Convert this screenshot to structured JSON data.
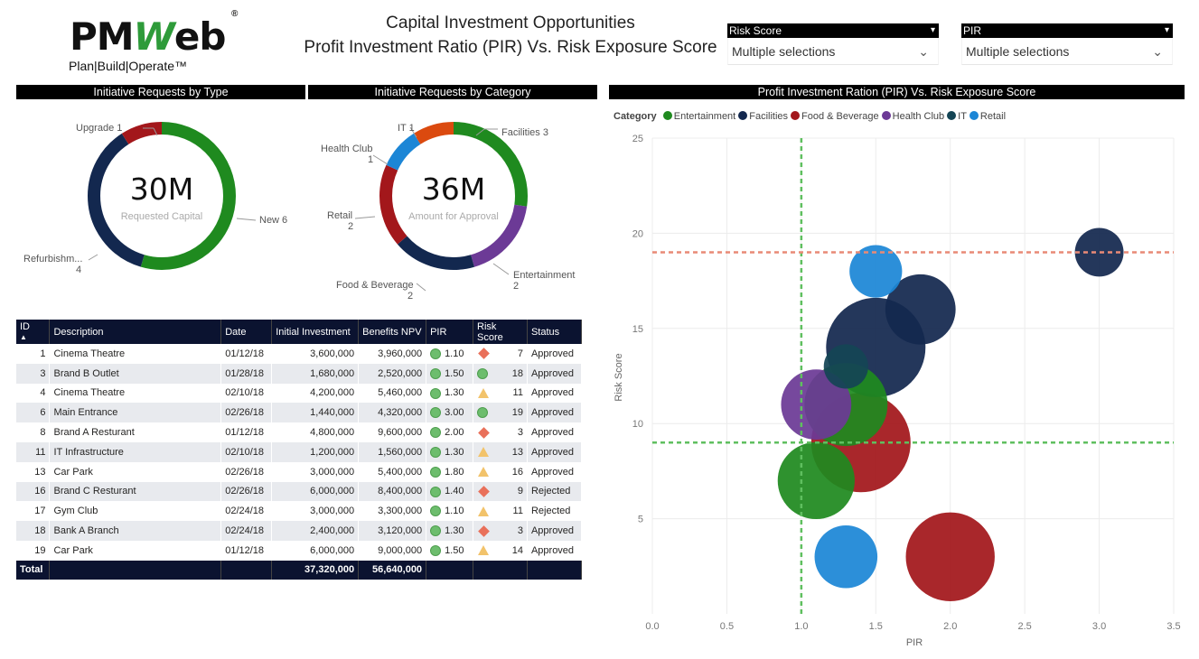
{
  "logo": {
    "brand_left": "PM",
    "brand_w": "W",
    "brand_right": "eb",
    "registered": "®",
    "tagline": "Plan|Build|Operate™"
  },
  "header": {
    "title_line1": "Capital Investment Opportunities",
    "title_line2": "Profit Investment Ratio (PIR) Vs. Risk Exposure Score"
  },
  "slicers": [
    {
      "label": "Risk Score",
      "value": "Multiple selections"
    },
    {
      "label": "PIR",
      "value": "Multiple selections"
    }
  ],
  "panels": {
    "type_title": "Initiative Requests by Type",
    "category_title": "Initiative Requests by Category",
    "scatter_title": "Profit Investment Ration (PIR) Vs. Risk Exposure Score"
  },
  "colors": {
    "green": "#1f8a1f",
    "navy": "#13284f",
    "darkred": "#a3171b",
    "purple": "#6c3a96",
    "blue": "#1c86d6",
    "orange": "#db4a0f",
    "tealnavy": "#144555",
    "ref_green": "#5fbf5f",
    "ref_red": "#e98a76"
  },
  "donut_type": {
    "center_value": "30M",
    "center_label": "Requested Capital",
    "segments": [
      {
        "name": "New",
        "count": 6,
        "color": "#1f8a1f",
        "label": "New 6"
      },
      {
        "name": "Refurbishment",
        "count": 4,
        "color": "#13284f",
        "label_line1": "Refurbishm...",
        "label_line2": "4"
      },
      {
        "name": "Upgrade",
        "count": 1,
        "color": "#a3171b",
        "label": "Upgrade 1"
      }
    ]
  },
  "donut_category": {
    "center_value": "36M",
    "center_label": "Amount for Approval",
    "segments": [
      {
        "name": "Facilities",
        "count": 3,
        "color": "#1f8a1f",
        "label": "Facilities 3"
      },
      {
        "name": "Entertainment",
        "count": 2,
        "color": "#6c3a96",
        "label_line1": "Entertainment",
        "label_line2": "2"
      },
      {
        "name": "Food & Beverage",
        "count": 2,
        "color": "#13284f",
        "label_line1": "Food & Beverage",
        "label_line2": "2"
      },
      {
        "name": "Retail",
        "count": 2,
        "color": "#a3171b",
        "label_line1": "Retail",
        "label_line2": "2"
      },
      {
        "name": "Health Club",
        "count": 1,
        "color": "#1c86d6",
        "label_line1": "Health Club",
        "label_line2": "1"
      },
      {
        "name": "IT",
        "count": 1,
        "color": "#db4a0f",
        "label": "IT 1"
      }
    ]
  },
  "table": {
    "columns": [
      "ID",
      "Description",
      "Date",
      "Initial Investment",
      "Benefits NPV",
      "PIR",
      "Risk Score",
      "Status"
    ],
    "sort_indicator": "▲",
    "rows": [
      {
        "id": "1",
        "desc": "Cinema Theatre",
        "date": "01/12/18",
        "inv": "3,600,000",
        "npv": "3,960,000",
        "pir": "1.10",
        "risk": "7",
        "risk_icon": "diamond",
        "status": "Approved"
      },
      {
        "id": "3",
        "desc": "Brand B Outlet",
        "date": "01/28/18",
        "inv": "1,680,000",
        "npv": "2,520,000",
        "pir": "1.50",
        "risk": "18",
        "risk_icon": "circle",
        "status": "Approved"
      },
      {
        "id": "4",
        "desc": "Cinema Theatre",
        "date": "02/10/18",
        "inv": "4,200,000",
        "npv": "5,460,000",
        "pir": "1.30",
        "risk": "11",
        "risk_icon": "triangle",
        "status": "Approved"
      },
      {
        "id": "6",
        "desc": "Main Entrance",
        "date": "02/26/18",
        "inv": "1,440,000",
        "npv": "4,320,000",
        "pir": "3.00",
        "risk": "19",
        "risk_icon": "circle",
        "status": "Approved"
      },
      {
        "id": "8",
        "desc": "Brand A Resturant",
        "date": "01/12/18",
        "inv": "4,800,000",
        "npv": "9,600,000",
        "pir": "2.00",
        "risk": "3",
        "risk_icon": "diamond",
        "status": "Approved"
      },
      {
        "id": "11",
        "desc": "IT Infrastructure",
        "date": "02/10/18",
        "inv": "1,200,000",
        "npv": "1,560,000",
        "pir": "1.30",
        "risk": "13",
        "risk_icon": "triangle",
        "status": "Approved"
      },
      {
        "id": "13",
        "desc": "Car Park",
        "date": "02/26/18",
        "inv": "3,000,000",
        "npv": "5,400,000",
        "pir": "1.80",
        "risk": "16",
        "risk_icon": "triangle",
        "status": "Approved"
      },
      {
        "id": "16",
        "desc": "Brand C Resturant",
        "date": "02/26/18",
        "inv": "6,000,000",
        "npv": "8,400,000",
        "pir": "1.40",
        "risk": "9",
        "risk_icon": "diamond",
        "status": "Rejected"
      },
      {
        "id": "17",
        "desc": "Gym Club",
        "date": "02/24/18",
        "inv": "3,000,000",
        "npv": "3,300,000",
        "pir": "1.10",
        "risk": "11",
        "risk_icon": "triangle",
        "status": "Rejected"
      },
      {
        "id": "18",
        "desc": "Bank A Branch",
        "date": "02/24/18",
        "inv": "2,400,000",
        "npv": "3,120,000",
        "pir": "1.30",
        "risk": "3",
        "risk_icon": "diamond",
        "status": "Approved"
      },
      {
        "id": "19",
        "desc": "Car Park",
        "date": "01/12/18",
        "inv": "6,000,000",
        "npv": "9,000,000",
        "pir": "1.50",
        "risk": "14",
        "risk_icon": "triangle",
        "status": "Approved"
      }
    ],
    "total": {
      "label": "Total",
      "inv": "37,320,000",
      "npv": "56,640,000"
    }
  },
  "chart_data": {
    "type": "scatter",
    "title": "Profit Investment Ration (PIR) Vs. Risk Exposure Score",
    "xlabel": "PIR",
    "ylabel": "Risk Score",
    "xlim": [
      0,
      3.5
    ],
    "ylim": [
      0,
      25
    ],
    "x_ticks": [
      "0.0",
      "0.5",
      "1.0",
      "1.5",
      "2.0",
      "2.5",
      "3.0",
      "3.5"
    ],
    "y_ticks": [
      "5",
      "10",
      "15",
      "20",
      "25"
    ],
    "legend_title": "Category",
    "legend": [
      {
        "name": "Entertainment",
        "color": "#1f8a1f"
      },
      {
        "name": "Facilities",
        "color": "#13284f"
      },
      {
        "name": "Food & Beverage",
        "color": "#a3171b"
      },
      {
        "name": "Health Club",
        "color": "#6c3a96"
      },
      {
        "name": "IT",
        "color": "#144555"
      },
      {
        "name": "Retail",
        "color": "#1c86d6"
      }
    ],
    "reference_lines": {
      "x": 1.0,
      "y_low": 9,
      "y_high": 19
    },
    "points": [
      {
        "label": "Brand A Resturant",
        "category": "Food & Beverage",
        "pir": 2.0,
        "risk": 3,
        "investment": 4800000,
        "color": "#a3171b"
      },
      {
        "label": "Bank A Branch",
        "category": "Retail",
        "pir": 1.3,
        "risk": 3,
        "investment": 2400000,
        "color": "#1c86d6"
      },
      {
        "label": "Cinema Theatre",
        "category": "Entertainment",
        "pir": 1.1,
        "risk": 7,
        "investment": 3600000,
        "color": "#1f8a1f"
      },
      {
        "label": "Brand C Resturant",
        "category": "Food & Beverage",
        "pir": 1.4,
        "risk": 9,
        "investment": 6000000,
        "color": "#a3171b"
      },
      {
        "label": "Cinema Theatre",
        "category": "Entertainment",
        "pir": 1.3,
        "risk": 11,
        "investment": 4200000,
        "color": "#1f8a1f"
      },
      {
        "label": "Gym Club",
        "category": "Health Club",
        "pir": 1.1,
        "risk": 11,
        "investment": 3000000,
        "color": "#6c3a96"
      },
      {
        "label": "Car Park",
        "category": "Facilities",
        "pir": 1.5,
        "risk": 14,
        "investment": 6000000,
        "color": "#13284f"
      },
      {
        "label": "Car Park",
        "category": "Facilities",
        "pir": 1.8,
        "risk": 16,
        "investment": 3000000,
        "color": "#13284f"
      },
      {
        "label": "IT Infrastructure",
        "category": "IT",
        "pir": 1.3,
        "risk": 13,
        "investment": 1200000,
        "color": "#144555"
      },
      {
        "label": "Brand B Outlet",
        "category": "Retail",
        "pir": 1.5,
        "risk": 18,
        "investment": 1680000,
        "color": "#1c86d6"
      },
      {
        "label": "Main Entrance",
        "category": "Facilities",
        "pir": 3.0,
        "risk": 19,
        "investment": 1440000,
        "color": "#13284f"
      }
    ]
  }
}
